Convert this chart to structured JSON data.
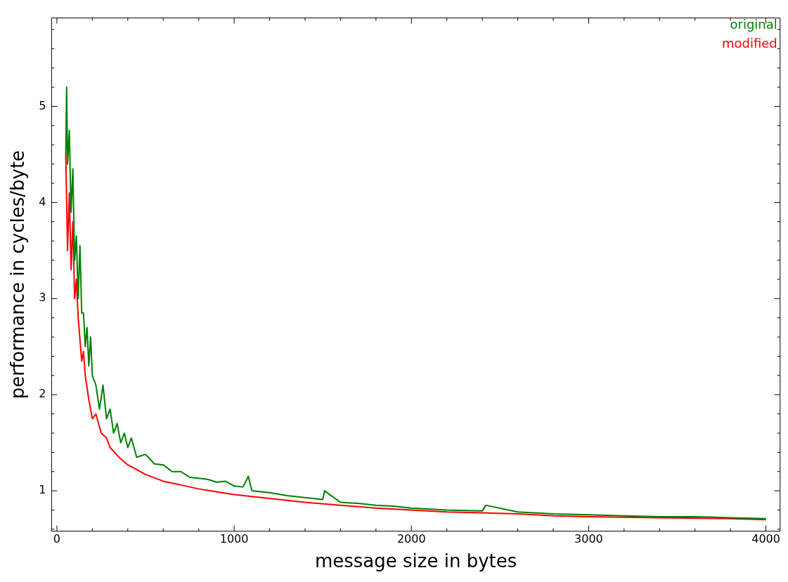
{
  "chart_data": {
    "type": "line",
    "xlabel": "message size in bytes",
    "ylabel": "performance in cycles/byte",
    "xlim": [
      -30,
      4080
    ],
    "ylim": [
      0.58,
      5.92
    ],
    "xticks": [
      0,
      {
        "value": 200,
        "label": null
      },
      {
        "value": 400,
        "label": null
      },
      {
        "value": 600,
        "label": null
      },
      {
        "value": 800,
        "label": null
      },
      1000,
      {
        "value": 1200,
        "label": null
      },
      {
        "value": 1400,
        "label": null
      },
      {
        "value": 1600,
        "label": null
      },
      {
        "value": 1800,
        "label": null
      },
      2000,
      {
        "value": 2200,
        "label": null
      },
      {
        "value": 2400,
        "label": null
      },
      {
        "value": 2600,
        "label": null
      },
      {
        "value": 2800,
        "label": null
      },
      3000,
      {
        "value": 3200,
        "label": null
      },
      {
        "value": 3400,
        "label": null
      },
      {
        "value": 3600,
        "label": null
      },
      {
        "value": 3800,
        "label": null
      },
      4000
    ],
    "yticks": [
      {
        "value": 0.6,
        "label": null
      },
      {
        "value": 0.8,
        "label": null
      },
      1,
      {
        "value": 1.2,
        "label": null
      },
      {
        "value": 1.4,
        "label": null
      },
      {
        "value": 1.6,
        "label": null
      },
      {
        "value": 1.8,
        "label": null
      },
      2,
      {
        "value": 2.2,
        "label": null
      },
      {
        "value": 2.4,
        "label": null
      },
      {
        "value": 2.6,
        "label": null
      },
      {
        "value": 2.8,
        "label": null
      },
      3,
      {
        "value": 3.2,
        "label": null
      },
      {
        "value": 3.4,
        "label": null
      },
      {
        "value": 3.6,
        "label": null
      },
      {
        "value": 3.8,
        "label": null
      },
      4,
      {
        "value": 4.2,
        "label": null
      },
      {
        "value": 4.4,
        "label": null
      },
      {
        "value": 4.6,
        "label": null
      },
      {
        "value": 4.8,
        "label": null
      },
      5,
      {
        "value": 5.2,
        "label": null
      },
      {
        "value": 5.4,
        "label": null
      },
      {
        "value": 5.6,
        "label": null
      },
      {
        "value": 5.8,
        "label": null
      }
    ],
    "grid": false,
    "legend": "top right",
    "marker": "none",
    "line_style": "solid",
    "series": [
      {
        "name": "original",
        "color": "#008000",
        "x": [
          50,
          55,
          60,
          70,
          80,
          90,
          100,
          110,
          120,
          130,
          140,
          150,
          160,
          170,
          180,
          190,
          200,
          220,
          240,
          260,
          280,
          300,
          320,
          340,
          360,
          380,
          400,
          420,
          450,
          500,
          550,
          600,
          650,
          700,
          750,
          800,
          850,
          900,
          950,
          1000,
          1050,
          1080,
          1100,
          1200,
          1300,
          1400,
          1500,
          1510,
          1600,
          1700,
          1800,
          1900,
          2000,
          2200,
          2400,
          2420,
          2600,
          2800,
          3000,
          3200,
          3400,
          3600,
          3800,
          4000
        ],
        "values": [
          4.5,
          5.2,
          4.4,
          4.75,
          3.9,
          4.35,
          3.4,
          3.65,
          3.0,
          3.55,
          2.85,
          2.85,
          2.5,
          2.7,
          2.3,
          2.6,
          2.2,
          2.1,
          1.85,
          2.1,
          1.75,
          1.85,
          1.6,
          1.7,
          1.5,
          1.6,
          1.45,
          1.55,
          1.35,
          1.38,
          1.28,
          1.27,
          1.2,
          1.2,
          1.14,
          1.13,
          1.12,
          1.09,
          1.1,
          1.05,
          1.04,
          1.15,
          1.0,
          0.98,
          0.95,
          0.93,
          0.91,
          1.0,
          0.88,
          0.87,
          0.85,
          0.84,
          0.82,
          0.8,
          0.79,
          0.85,
          0.78,
          0.76,
          0.75,
          0.74,
          0.73,
          0.73,
          0.72,
          0.71
        ]
      },
      {
        "name": "modified",
        "color": "#ff0000",
        "x": [
          50,
          60,
          70,
          80,
          90,
          100,
          110,
          120,
          140,
          150,
          160,
          180,
          200,
          220,
          250,
          280,
          300,
          350,
          400,
          450,
          500,
          600,
          700,
          800,
          900,
          1000,
          1200,
          1400,
          1600,
          1800,
          2000,
          2200,
          2400,
          2600,
          2800,
          3000,
          3400,
          3800,
          4000
        ],
        "values": [
          4.5,
          3.5,
          4.1,
          3.3,
          3.8,
          3.0,
          3.2,
          2.8,
          2.35,
          2.45,
          2.2,
          1.95,
          1.75,
          1.8,
          1.6,
          1.55,
          1.45,
          1.35,
          1.27,
          1.22,
          1.17,
          1.1,
          1.06,
          1.02,
          0.99,
          0.96,
          0.92,
          0.88,
          0.85,
          0.82,
          0.8,
          0.78,
          0.77,
          0.76,
          0.74,
          0.73,
          0.72,
          0.71,
          0.7
        ]
      }
    ]
  }
}
